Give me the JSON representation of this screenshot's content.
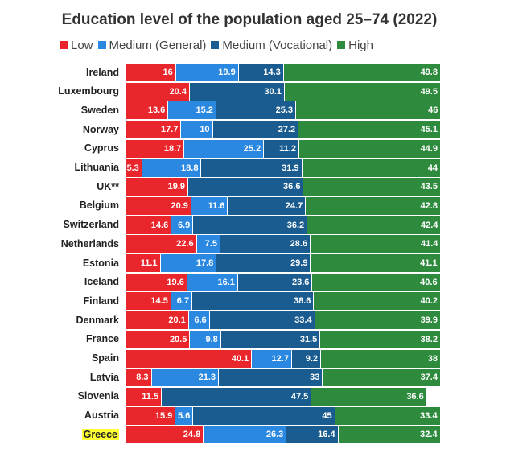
{
  "chart_data": {
    "type": "bar",
    "orientation": "horizontal",
    "stacked": true,
    "title": "Education level of the population aged 25–74 (2022)",
    "xlim": [
      0,
      100
    ],
    "highlight": "Greece",
    "categories": [
      "Ireland",
      "Luxembourg",
      "Sweden",
      "Norway",
      "Cyprus",
      "Lithuania",
      "UK**",
      "Belgium",
      "Switzerland",
      "Netherlands",
      "Estonia",
      "Iceland",
      "Finland",
      "Denmark",
      "France",
      "Spain",
      "Latvia",
      "Slovenia",
      "Austria",
      "Greece"
    ],
    "series": [
      {
        "name": "Low",
        "color": "#e8262b",
        "values": [
          16,
          20.4,
          13.6,
          17.7,
          18.7,
          5.3,
          19.9,
          20.9,
          14.6,
          22.6,
          11.1,
          19.6,
          14.5,
          20.1,
          20.5,
          40.1,
          8.3,
          11.5,
          15.9,
          24.8
        ]
      },
      {
        "name": "Medium (General)",
        "color": "#2a88e0",
        "values": [
          19.9,
          0,
          15.2,
          10,
          25.2,
          18.8,
          0,
          11.6,
          6.9,
          7.5,
          17.8,
          16.1,
          6.7,
          6.6,
          9.8,
          12.7,
          21.3,
          0,
          5.6,
          26.3
        ]
      },
      {
        "name": "Medium (Vocational)",
        "color": "#1a5c8f",
        "values": [
          14.3,
          30.1,
          25.3,
          27.2,
          11.2,
          31.9,
          36.6,
          24.7,
          36.2,
          28.6,
          29.9,
          23.6,
          38.6,
          33.4,
          31.5,
          9.2,
          33,
          47.5,
          45,
          16.4
        ]
      },
      {
        "name": "High",
        "color": "#2e8b3e",
        "values": [
          49.8,
          49.5,
          46,
          45.1,
          44.9,
          44,
          43.5,
          42.8,
          42.4,
          41.4,
          41.1,
          40.6,
          40.2,
          39.9,
          38.2,
          38,
          37.4,
          36.6,
          33.4,
          32.4
        ]
      }
    ]
  }
}
